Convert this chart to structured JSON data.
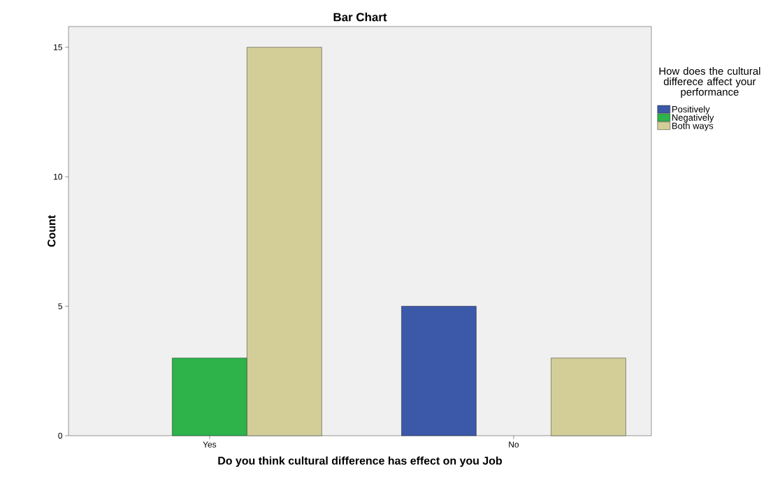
{
  "chart_data": {
    "type": "bar",
    "title": "Bar Chart",
    "xlabel": "Do you think cultural difference has effect on you Job",
    "ylabel": "Count",
    "legend_title": "How does the cultural differece affect your performance",
    "categories": [
      "Yes",
      "No"
    ],
    "series": [
      {
        "name": "Positively",
        "color": "#3c58a8",
        "values": [
          null,
          5
        ]
      },
      {
        "name": "Negatively",
        "color": "#2db34a",
        "values": [
          3,
          null
        ]
      },
      {
        "name": "Both ways",
        "color": "#d3ce97",
        "values": [
          15,
          3
        ]
      }
    ],
    "ylim": [
      0,
      15.8
    ],
    "yticks": [
      0,
      5,
      10,
      15
    ],
    "grid": false,
    "legend": "right"
  }
}
